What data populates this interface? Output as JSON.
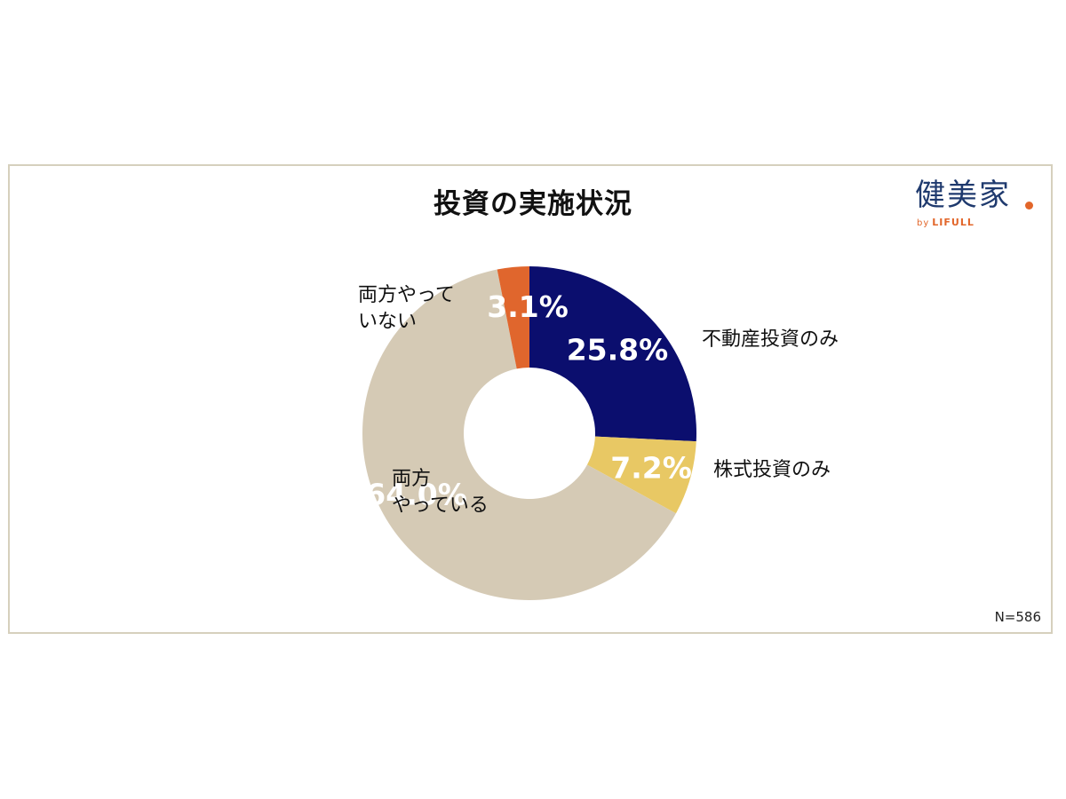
{
  "logo": {
    "main_text": "健美家",
    "sub_by": "by",
    "sub_brand": "LIFULL"
  },
  "chart_data": {
    "type": "pie",
    "title": "投資の実施状況",
    "note": "N=586",
    "donut": true,
    "slices": [
      {
        "label": "不動産投資のみ",
        "value": 25.8,
        "value_label": "25.8%",
        "color": "#0b0e6e"
      },
      {
        "label": "株式投資のみ",
        "value": 7.2,
        "value_label": "7.2%",
        "color": "#e8c864"
      },
      {
        "label": "両方\nやっている",
        "label_lines": [
          "両方",
          "やっている"
        ],
        "value": 64.0,
        "value_label": "64.0%",
        "color": "#d5cab5"
      },
      {
        "label": "両方やって\nいない",
        "label_lines": [
          "両方やって",
          "いない"
        ],
        "value": 3.1,
        "value_label": "3.1%",
        "color": "#e0662d"
      }
    ]
  }
}
